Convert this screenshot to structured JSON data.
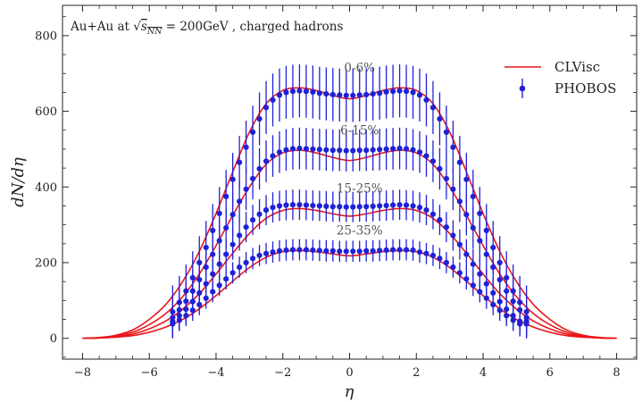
{
  "chart_data": {
    "type": "line",
    "title": "",
    "annotation": "Au+Au at √s_NN = 200GeV , charged hadrons",
    "annotation_parts": {
      "prefix": "Au+Au at ",
      "sqrt": "√",
      "s": "s",
      "sub": "NN",
      "suffix": " = 200GeV , charged hadrons"
    },
    "xlabel": "η",
    "ylabel": "dN/dη",
    "xlim": [
      -8.6,
      8.6
    ],
    "ylim": [
      -55,
      880
    ],
    "x_ticks": [
      -8,
      -6,
      -4,
      -2,
      0,
      2,
      4,
      6,
      8
    ],
    "x_tick_labels": [
      "−8",
      "−6",
      "−4",
      "−2",
      "0",
      "2",
      "4",
      "6",
      "8"
    ],
    "y_ticks": [
      0,
      200,
      400,
      600,
      800
    ],
    "y_tick_labels": [
      "0",
      "200",
      "400",
      "600",
      "800"
    ],
    "legend": {
      "placement": "top-right",
      "entries": [
        {
          "label": "CLVisc",
          "kind": "line",
          "color": "#e8161b"
        },
        {
          "label": "PHOBOS",
          "kind": "errorbar",
          "color": "#1f21d6"
        }
      ]
    },
    "series": [
      {
        "label": "0-6%",
        "model_peak": 662,
        "model_center": 633,
        "model_x": [
          -8,
          -7.5,
          -7,
          -6.5,
          -6,
          -5.5,
          -5,
          -4.5,
          -4,
          -3.5,
          -3,
          -2.5,
          -2,
          -1.5,
          -1,
          -0.5,
          0,
          0.5,
          1,
          1.5,
          2,
          2.5,
          3,
          3.5,
          4,
          4.5,
          5,
          5.5,
          6,
          6.5,
          7,
          7.5,
          8
        ],
        "model_y": [
          0,
          2,
          8,
          22,
          50,
          90,
          150,
          230,
          330,
          440,
          545,
          620,
          655,
          662,
          655,
          642,
          633,
          642,
          655,
          662,
          655,
          620,
          545,
          440,
          330,
          230,
          150,
          90,
          50,
          22,
          8,
          2,
          0
        ],
        "data_x": [
          -5.3,
          -5.1,
          -4.9,
          -4.7,
          -4.5,
          -4.3,
          -4.1,
          -3.9,
          -3.7,
          -3.5,
          -3.3,
          -3.1,
          -2.9,
          -2.7,
          -2.5,
          -2.3,
          -2.1,
          -1.9,
          -1.7,
          -1.5,
          -1.3,
          -1.1,
          -0.9,
          -0.7,
          -0.5,
          -0.3,
          -0.1,
          0.1,
          0.3,
          0.5,
          0.7,
          0.9,
          1.1,
          1.3,
          1.5,
          1.7,
          1.9,
          2.1,
          2.3,
          2.5,
          2.7,
          2.9,
          3.1,
          3.3,
          3.5,
          3.7,
          3.9,
          4.1,
          4.3,
          4.5,
          4.7,
          4.9,
          5.1,
          5.3
        ],
        "data_y": [
          70,
          95,
          125,
          160,
          200,
          240,
          285,
          330,
          375,
          420,
          465,
          505,
          545,
          580,
          610,
          630,
          643,
          650,
          653,
          654,
          653,
          651,
          648,
          646,
          644,
          643,
          642,
          642,
          643,
          644,
          646,
          648,
          651,
          653,
          654,
          653,
          650,
          643,
          630,
          610,
          580,
          545,
          505,
          465,
          420,
          375,
          330,
          285,
          240,
          200,
          160,
          125,
          95,
          70
        ],
        "data_err": 70
      },
      {
        "label": "6-15%",
        "model_peak": 497,
        "model_center": 470,
        "model_x": [
          -8,
          -7.5,
          -7,
          -6.5,
          -6,
          -5.5,
          -5,
          -4.5,
          -4,
          -3.5,
          -3,
          -2.5,
          -2,
          -1.5,
          -1,
          -0.5,
          0,
          0.5,
          1,
          1.5,
          2,
          2.5,
          3,
          3.5,
          4,
          4.5,
          5,
          5.5,
          6,
          6.5,
          7,
          7.5,
          8
        ],
        "model_y": [
          0,
          2,
          6,
          16,
          36,
          66,
          110,
          170,
          245,
          325,
          400,
          460,
          490,
          497,
          490,
          478,
          470,
          478,
          490,
          497,
          490,
          460,
          400,
          325,
          245,
          170,
          110,
          66,
          36,
          16,
          6,
          2,
          0
        ],
        "data_x": [
          -5.3,
          -5.1,
          -4.9,
          -4.7,
          -4.5,
          -4.3,
          -4.1,
          -3.9,
          -3.7,
          -3.5,
          -3.3,
          -3.1,
          -2.9,
          -2.7,
          -2.5,
          -2.3,
          -2.1,
          -1.9,
          -1.7,
          -1.5,
          -1.3,
          -1.1,
          -0.9,
          -0.7,
          -0.5,
          -0.3,
          -0.1,
          0.1,
          0.3,
          0.5,
          0.7,
          0.9,
          1.1,
          1.3,
          1.5,
          1.7,
          1.9,
          2.1,
          2.3,
          2.5,
          2.7,
          2.9,
          3.1,
          3.3,
          3.5,
          3.7,
          3.9,
          4.1,
          4.3,
          4.5,
          4.7,
          4.9,
          5.1,
          5.3
        ],
        "data_y": [
          55,
          75,
          98,
          125,
          155,
          188,
          222,
          258,
          292,
          327,
          362,
          394,
          422,
          448,
          468,
          482,
          492,
          498,
          501,
          502,
          501,
          500,
          499,
          498,
          497,
          497,
          496,
          496,
          497,
          497,
          498,
          499,
          500,
          501,
          502,
          501,
          498,
          492,
          482,
          468,
          448,
          422,
          394,
          362,
          327,
          292,
          258,
          222,
          188,
          155,
          125,
          98,
          75,
          55
        ],
        "data_err": 55
      },
      {
        "label": "15-25%",
        "model_peak": 343,
        "model_center": 323,
        "model_x": [
          -8,
          -7.5,
          -7,
          -6.5,
          -6,
          -5.5,
          -5,
          -4.5,
          -4,
          -3.5,
          -3,
          -2.5,
          -2,
          -1.5,
          -1,
          -0.5,
          0,
          0.5,
          1,
          1.5,
          2,
          2.5,
          3,
          3.5,
          4,
          4.5,
          5,
          5.5,
          6,
          6.5,
          7,
          7.5,
          8
        ],
        "model_y": [
          0,
          1,
          4,
          11,
          25,
          46,
          77,
          118,
          170,
          225,
          277,
          317,
          338,
          343,
          338,
          329,
          323,
          329,
          338,
          343,
          338,
          317,
          277,
          225,
          170,
          118,
          77,
          46,
          25,
          11,
          4,
          1,
          0
        ],
        "data_x": [
          -5.3,
          -5.1,
          -4.9,
          -4.7,
          -4.5,
          -4.3,
          -4.1,
          -3.9,
          -3.7,
          -3.5,
          -3.3,
          -3.1,
          -2.9,
          -2.7,
          -2.5,
          -2.3,
          -2.1,
          -1.9,
          -1.7,
          -1.5,
          -1.3,
          -1.1,
          -0.9,
          -0.7,
          -0.5,
          -0.3,
          -0.1,
          0.1,
          0.3,
          0.5,
          0.7,
          0.9,
          1.1,
          1.3,
          1.5,
          1.7,
          1.9,
          2.1,
          2.3,
          2.5,
          2.7,
          2.9,
          3.1,
          3.3,
          3.5,
          3.7,
          3.9,
          4.1,
          4.3,
          4.5,
          4.7,
          4.9,
          5.1,
          5.3
        ],
        "data_y": [
          45,
          60,
          77,
          97,
          120,
          144,
          170,
          196,
          222,
          248,
          272,
          294,
          313,
          328,
          339,
          346,
          350,
          352,
          353,
          353,
          352,
          351,
          350,
          349,
          348,
          348,
          347,
          347,
          348,
          348,
          349,
          350,
          351,
          352,
          353,
          352,
          350,
          346,
          339,
          328,
          313,
          294,
          272,
          248,
          222,
          196,
          170,
          144,
          120,
          97,
          77,
          60,
          45,
          45
        ],
        "data_err": 40
      },
      {
        "label": "25-35%",
        "model_peak": 232,
        "model_center": 218,
        "model_x": [
          -8,
          -7.5,
          -7,
          -6.5,
          -6,
          -5.5,
          -5,
          -4.5,
          -4,
          -3.5,
          -3,
          -2.5,
          -2,
          -1.5,
          -1,
          -0.5,
          0,
          0.5,
          1,
          1.5,
          2,
          2.5,
          3,
          3.5,
          4,
          4.5,
          5,
          5.5,
          6,
          6.5,
          7,
          7.5,
          8
        ],
        "model_y": [
          0,
          1,
          3,
          7,
          16,
          30,
          50,
          78,
          113,
          151,
          187,
          214,
          229,
          232,
          229,
          223,
          218,
          223,
          229,
          232,
          229,
          214,
          187,
          151,
          113,
          78,
          50,
          30,
          16,
          7,
          3,
          1,
          0
        ],
        "data_x": [
          -5.3,
          -5.1,
          -4.9,
          -4.7,
          -4.5,
          -4.3,
          -4.1,
          -3.9,
          -3.7,
          -3.5,
          -3.3,
          -3.1,
          -2.9,
          -2.7,
          -2.5,
          -2.3,
          -2.1,
          -1.9,
          -1.7,
          -1.5,
          -1.3,
          -1.1,
          -0.9,
          -0.7,
          -0.5,
          -0.3,
          -0.1,
          0.1,
          0.3,
          0.5,
          0.7,
          0.9,
          1.1,
          1.3,
          1.5,
          1.7,
          1.9,
          2.1,
          2.3,
          2.5,
          2.7,
          2.9,
          3.1,
          3.3,
          3.5,
          3.7,
          3.9,
          4.1,
          4.3,
          4.5,
          4.7,
          4.9,
          5.1,
          5.3
        ],
        "data_y": [
          38,
          48,
          60,
          74,
          89,
          106,
          123,
          140,
          157,
          173,
          188,
          200,
          211,
          219,
          224,
          228,
          231,
          233,
          234,
          234,
          234,
          233,
          232,
          231,
          231,
          230,
          230,
          230,
          230,
          231,
          231,
          232,
          233,
          234,
          234,
          234,
          233,
          228,
          224,
          219,
          211,
          200,
          188,
          173,
          157,
          140,
          123,
          106,
          89,
          74,
          60,
          48,
          38,
          38
        ],
        "data_err": 28
      }
    ],
    "curve_label_x": 0.3
  }
}
